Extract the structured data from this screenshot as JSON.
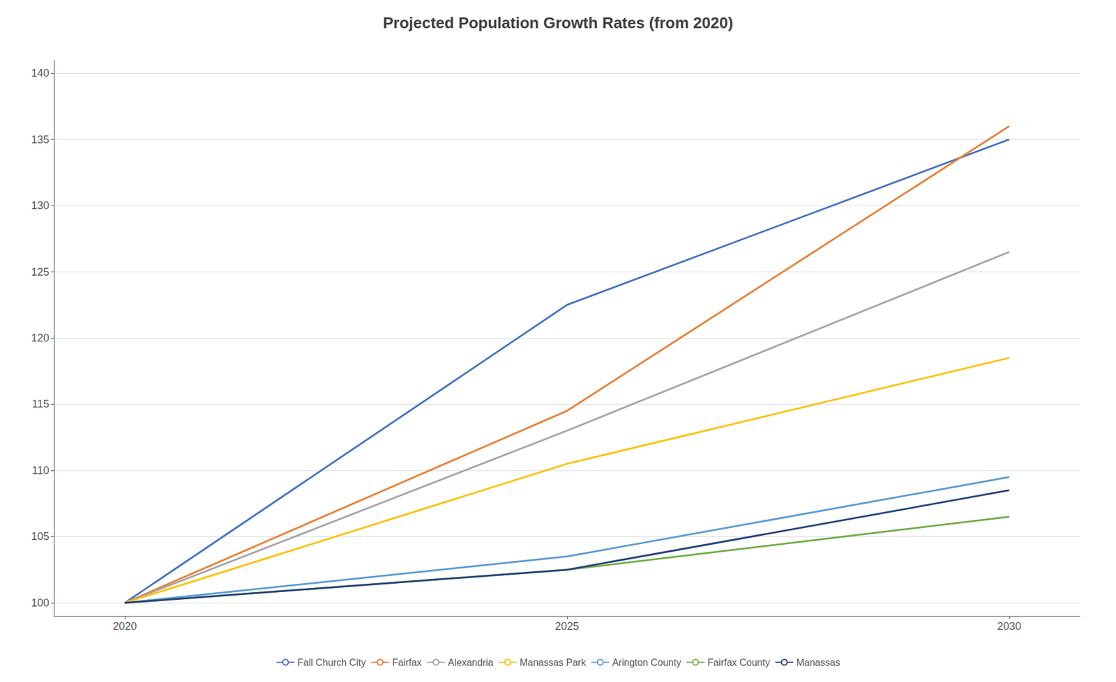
{
  "chart_data": {
    "type": "line",
    "title": "Projected Population Growth Rates (from 2020)",
    "x": [
      2020,
      2025,
      2030
    ],
    "series": [
      {
        "name": "Fall Church City",
        "color": "#4472C4",
        "values": [
          100,
          122.5,
          135.0
        ]
      },
      {
        "name": "Fairfax",
        "color": "#ED7D31",
        "values": [
          100,
          114.5,
          136.0
        ]
      },
      {
        "name": "Alexandria",
        "color": "#A5A5A5",
        "values": [
          100,
          113.0,
          126.5
        ]
      },
      {
        "name": "Manassas Park",
        "color": "#FFC000",
        "values": [
          100,
          110.5,
          118.5
        ]
      },
      {
        "name": "Arington County",
        "color": "#5B9BD5",
        "values": [
          100,
          103.5,
          109.5
        ]
      },
      {
        "name": "Fairfax County",
        "color": "#70AD47",
        "values": [
          100,
          102.5,
          106.5
        ]
      },
      {
        "name": "Manassas",
        "color": "#264478",
        "values": [
          100,
          102.5,
          108.5
        ]
      }
    ],
    "xlim": [
      2019.2,
      2030.8
    ],
    "ylim": [
      99,
      141
    ],
    "xticks": [
      2020,
      2025,
      2030
    ],
    "yticks": [
      100,
      105,
      110,
      115,
      120,
      125,
      130,
      135,
      140
    ],
    "grid": true,
    "legend": "bottom"
  }
}
